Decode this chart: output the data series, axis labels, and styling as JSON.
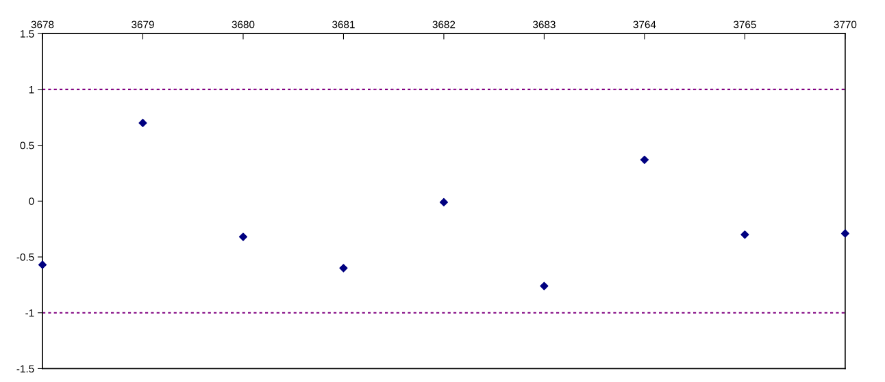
{
  "chart_data": {
    "type": "scatter",
    "categories": [
      "3678",
      "3679",
      "3680",
      "3681",
      "3682",
      "3683",
      "3764",
      "3765",
      "3770"
    ],
    "series": [
      {
        "color": "#000080",
        "values": [
          -0.57,
          0.7,
          -0.32,
          -0.6,
          -0.01,
          -0.76,
          0.37,
          -0.3,
          -0.29
        ]
      }
    ],
    "ylim": [
      -1.5,
      1.5
    ],
    "yticks": [
      -1.5,
      -1,
      -0.5,
      0,
      0.5,
      1,
      1.5
    ],
    "ref_lines": [
      {
        "axis": "y",
        "value": 1,
        "color": "#800080",
        "line_style": "dotted"
      },
      {
        "axis": "y",
        "value": -1,
        "color": "#800080",
        "line_style": "dotted"
      }
    ],
    "marker": "diamond",
    "grid": false,
    "legend": false
  }
}
